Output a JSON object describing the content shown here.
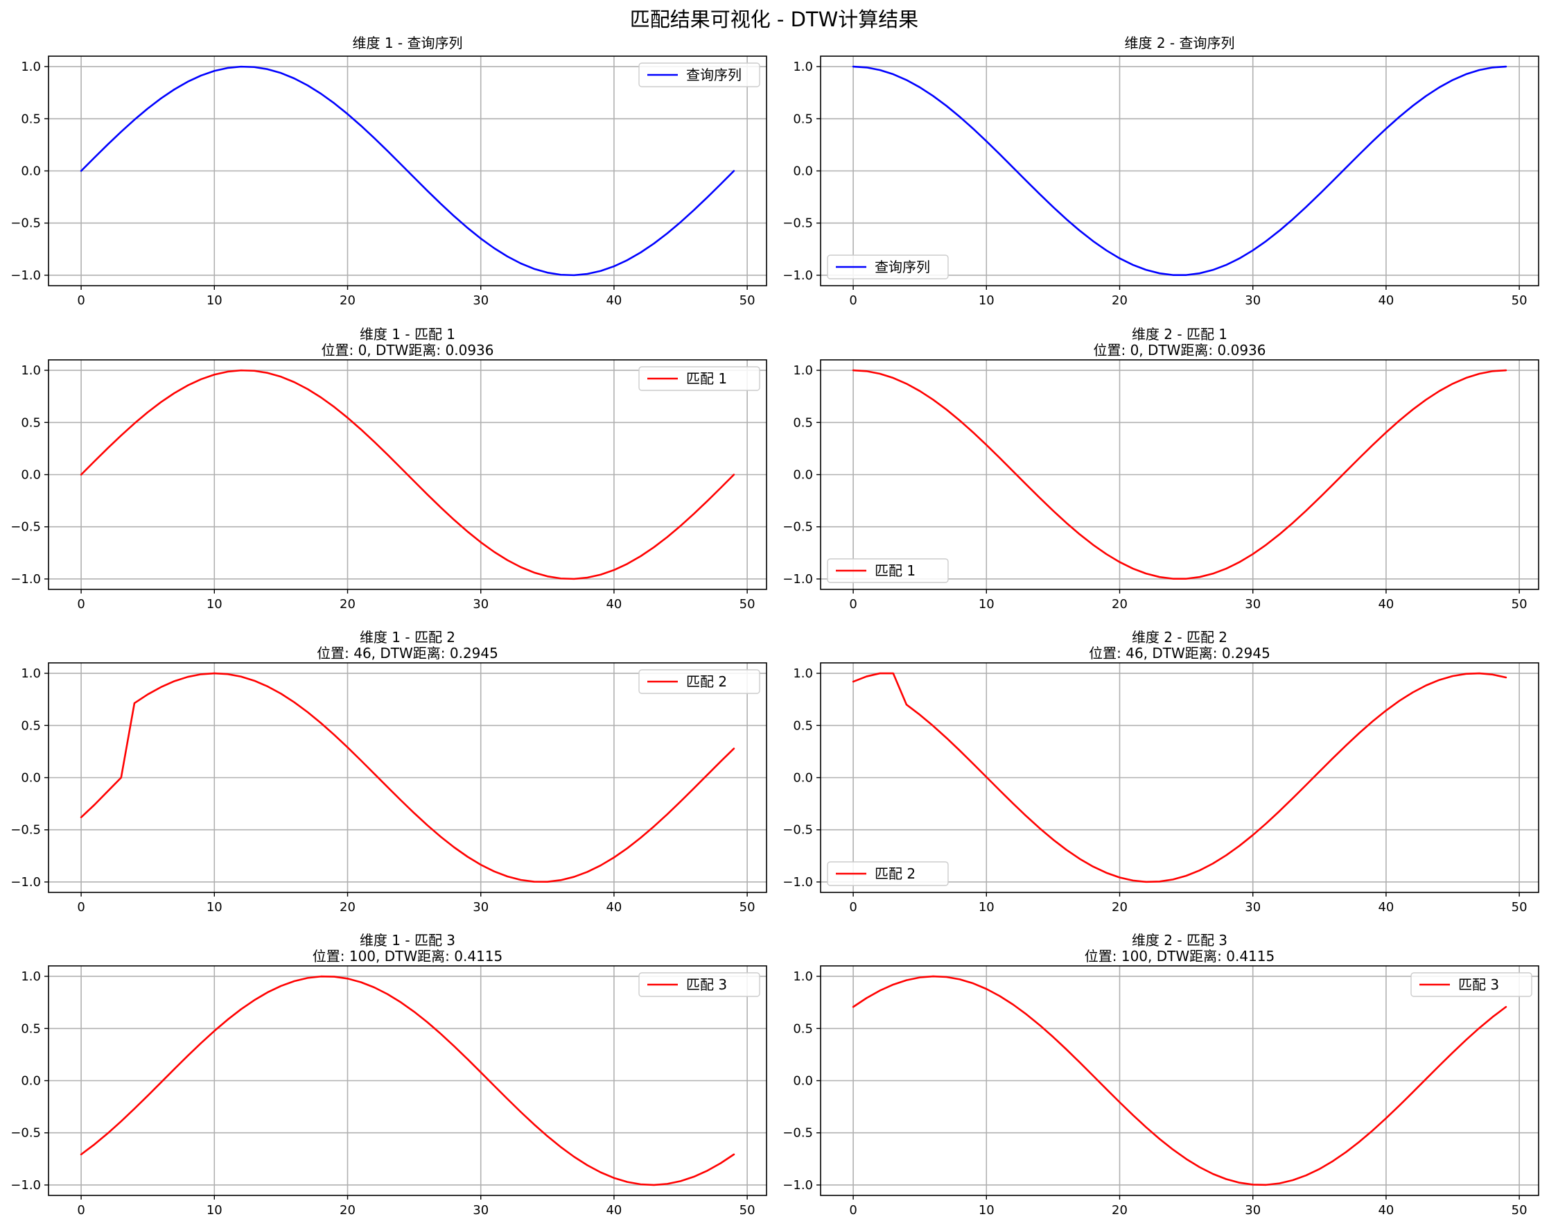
{
  "figure": {
    "title": "匹配结果可视化 - DTW计算结果"
  },
  "colors": {
    "query": "#0000ff",
    "match": "#ff0000",
    "grid": "#b0b0b0",
    "axes": "#000000"
  },
  "chart_data": [
    {
      "type": "line",
      "title": "维度 1 - 查询序列",
      "subtitle": "",
      "xlim": [
        -2.45,
        51.45
      ],
      "ylim": [
        -1.1,
        1.1
      ],
      "xticks": [
        0,
        10,
        20,
        30,
        40,
        50
      ],
      "yticks": [
        1.0,
        0.5,
        0.0,
        -0.5,
        -1.0
      ],
      "grid": true,
      "legend": "upper-right",
      "series": [
        {
          "name": "查询序列",
          "color": "#0000ff",
          "kind": "sin",
          "phase_deg": 0,
          "x_start": 0,
          "x_end": 49
        }
      ]
    },
    {
      "type": "line",
      "title": "维度 2 - 查询序列",
      "subtitle": "",
      "xlim": [
        -2.45,
        51.45
      ],
      "ylim": [
        -1.1,
        1.1
      ],
      "xticks": [
        0,
        10,
        20,
        30,
        40,
        50
      ],
      "yticks": [
        1.0,
        0.5,
        0.0,
        -0.5,
        -1.0
      ],
      "grid": true,
      "legend": "lower-left",
      "series": [
        {
          "name": "查询序列",
          "color": "#0000ff",
          "kind": "cos",
          "phase_deg": 0,
          "x_start": 0,
          "x_end": 49
        }
      ]
    },
    {
      "type": "line",
      "title": "维度 1 - 匹配 1",
      "subtitle": "位置: 0, DTW距离: 0.0936",
      "xlim": [
        -2.45,
        51.45
      ],
      "ylim": [
        -1.1,
        1.1
      ],
      "xticks": [
        0,
        10,
        20,
        30,
        40,
        50
      ],
      "yticks": [
        1.0,
        0.5,
        0.0,
        -0.5,
        -1.0
      ],
      "grid": true,
      "legend": "upper-right",
      "series": [
        {
          "name": "匹配 1",
          "color": "#ff0000",
          "kind": "sin",
          "phase_deg": 0,
          "x_start": 0,
          "x_end": 49
        }
      ]
    },
    {
      "type": "line",
      "title": "维度 2 - 匹配 1",
      "subtitle": "位置: 0, DTW距离: 0.0936",
      "xlim": [
        -2.45,
        51.45
      ],
      "ylim": [
        -1.1,
        1.1
      ],
      "xticks": [
        0,
        10,
        20,
        30,
        40,
        50
      ],
      "yticks": [
        1.0,
        0.5,
        0.0,
        -0.5,
        -1.0
      ],
      "grid": true,
      "legend": "lower-left",
      "series": [
        {
          "name": "匹配 1",
          "color": "#ff0000",
          "kind": "cos",
          "phase_deg": 0,
          "x_start": 0,
          "x_end": 49
        }
      ]
    },
    {
      "type": "line",
      "title": "维度 1 - 匹配 2",
      "subtitle": "位置: 46, DTW距离: 0.2945",
      "xlim": [
        -2.45,
        51.45
      ],
      "ylim": [
        -1.1,
        1.1
      ],
      "xticks": [
        0,
        10,
        20,
        30,
        40,
        50
      ],
      "yticks": [
        1.0,
        0.5,
        0.0,
        -0.5,
        -1.0
      ],
      "grid": true,
      "legend": "upper-right",
      "series": [
        {
          "name": "匹配 2",
          "color": "#ff0000",
          "kind": "sin",
          "phase_deg": 16.2,
          "x_start": 4,
          "x_end": 49,
          "prefix": [
            [
              0,
              -0.38
            ],
            [
              1,
              -0.26
            ],
            [
              2,
              -0.13
            ],
            [
              3,
              0.0
            ]
          ]
        }
      ]
    },
    {
      "type": "line",
      "title": "维度 2 - 匹配 2",
      "subtitle": "位置: 46, DTW距离: 0.2945",
      "xlim": [
        -2.45,
        51.45
      ],
      "ylim": [
        -1.1,
        1.1
      ],
      "xticks": [
        0,
        10,
        20,
        30,
        40,
        50
      ],
      "yticks": [
        1.0,
        0.5,
        0.0,
        -0.5,
        -1.0
      ],
      "grid": true,
      "legend": "lower-left",
      "series": [
        {
          "name": "匹配 2",
          "color": "#ff0000",
          "kind": "cos",
          "phase_deg": 16.2,
          "x_start": 4,
          "x_end": 49,
          "prefix": [
            [
              0,
              0.92
            ],
            [
              1,
              0.97
            ],
            [
              2,
              1.0
            ],
            [
              3,
              1.0
            ]
          ]
        }
      ]
    },
    {
      "type": "line",
      "title": "维度 1 - 匹配 3",
      "subtitle": "位置: 100, DTW距离: 0.4115",
      "xlim": [
        -2.45,
        51.45
      ],
      "ylim": [
        -1.1,
        1.1
      ],
      "xticks": [
        0,
        10,
        20,
        30,
        40,
        50
      ],
      "yticks": [
        1.0,
        0.5,
        0.0,
        -0.5,
        -1.0
      ],
      "grid": true,
      "legend": "upper-right",
      "series": [
        {
          "name": "匹配 3",
          "color": "#ff0000",
          "kind": "sin",
          "phase_deg": -45,
          "x_start": 0,
          "x_end": 49
        }
      ]
    },
    {
      "type": "line",
      "title": "维度 2 - 匹配 3",
      "subtitle": "位置: 100, DTW距离: 0.4115",
      "xlim": [
        -2.45,
        51.45
      ],
      "ylim": [
        -1.1,
        1.1
      ],
      "xticks": [
        0,
        10,
        20,
        30,
        40,
        50
      ],
      "yticks": [
        1.0,
        0.5,
        0.0,
        -0.5,
        -1.0
      ],
      "grid": true,
      "legend": "upper-right",
      "series": [
        {
          "name": "匹配 3",
          "color": "#ff0000",
          "kind": "cos",
          "phase_deg": -45,
          "x_start": 0,
          "x_end": 49
        }
      ]
    }
  ]
}
